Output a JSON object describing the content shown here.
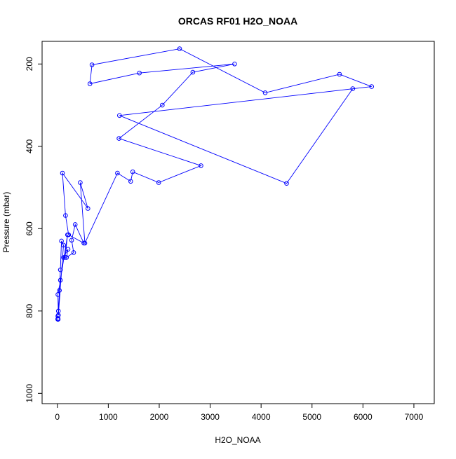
{
  "chart_data": {
    "type": "line",
    "title": "ORCAS RF01 H2O_NOAA",
    "xlabel": "H2O_NOAA",
    "ylabel": "Pressure (mbar)",
    "xlim": [
      -300,
      7400
    ],
    "ylim": [
      1025,
      145
    ],
    "y_axis_inverted": true,
    "grid": false,
    "legend": "none",
    "series_color": "#0000ff",
    "marker": "open-circle",
    "x_ticks": [
      0,
      1000,
      2000,
      3000,
      4000,
      5000,
      6000,
      7000
    ],
    "x_tick_labels": [
      "0",
      "1000",
      "2000",
      "3000",
      "4000",
      "5000",
      "6000",
      "7000"
    ],
    "y_ticks": [
      200,
      400,
      600,
      800,
      1000
    ],
    "y_tick_labels": [
      "200",
      "400",
      "600",
      "800",
      "1000"
    ],
    "series": [
      {
        "x": [
          10,
          15,
          8,
          12,
          10,
          20,
          40,
          60,
          80,
          120,
          20,
          10,
          60,
          200,
          150,
          120,
          210,
          180,
          320,
          280,
          350,
          520,
          220,
          160,
          100,
          600,
          450,
          540,
          1180,
          1440,
          1480,
          1990,
          2820,
          1210,
          2060,
          2660,
          3480,
          1610,
          640,
          680,
          2400,
          4080,
          5540,
          6170,
          1220,
          4500,
          5800
        ],
        "y": [
          820,
          820,
          820,
          818,
          812,
          800,
          750,
          700,
          630,
          640,
          810,
          760,
          725,
          615,
          670,
          670,
          650,
          670,
          658,
          628,
          590,
          635,
          615,
          568,
          465,
          551,
          488,
          635,
          465,
          485,
          462,
          488,
          447,
          381,
          300,
          220,
          200,
          222,
          248,
          202,
          163,
          270,
          225,
          255,
          325,
          490,
          260
        ]
      }
    ]
  }
}
